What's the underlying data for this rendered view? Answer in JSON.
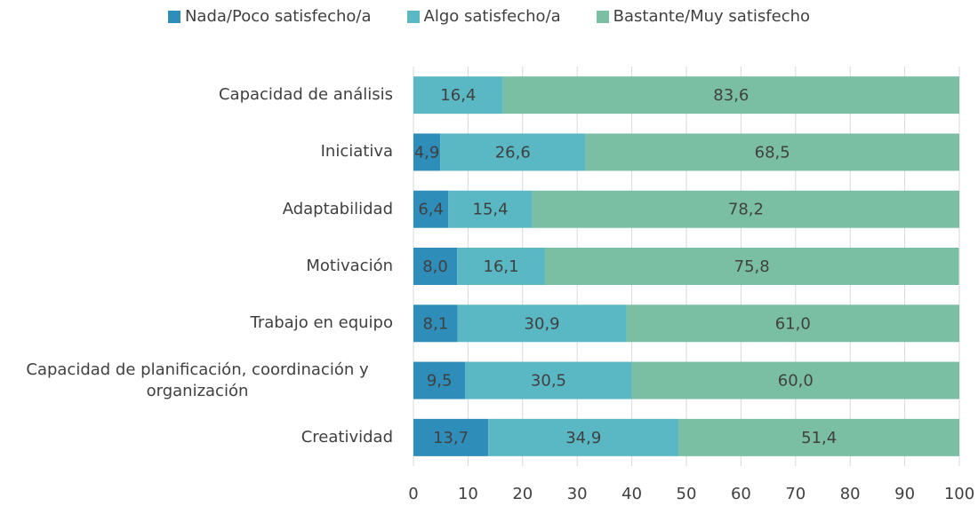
{
  "chart_data": {
    "type": "stacked-bar-horizontal",
    "categories": [
      "Capacidad de análisis",
      "Iniciativa",
      "Adaptabilidad",
      "Motivación",
      "Trabajo en equipo",
      "Capacidad de planificación, coordinación y organización",
      "Creatividad"
    ],
    "series": [
      {
        "name": "Nada/Poco satisfecho/a",
        "color": "#2f8dba",
        "values": [
          null,
          4.9,
          6.4,
          8.0,
          8.1,
          9.5,
          13.7
        ],
        "value_labels": [
          null,
          "4,9",
          "6,4",
          "8,0",
          "8,1",
          "9,5",
          "13,7"
        ]
      },
      {
        "name": "Algo satisfecho/a",
        "color": "#5ab7c4",
        "values": [
          16.4,
          26.6,
          15.4,
          16.1,
          30.9,
          30.5,
          34.9
        ],
        "value_labels": [
          "16,4",
          "26,6",
          "15,4",
          "16,1",
          "30,9",
          "30,5",
          "34,9"
        ]
      },
      {
        "name": "Bastante/Muy satisfecho",
        "color": "#7abfa4",
        "values": [
          83.6,
          68.5,
          78.2,
          75.8,
          61.0,
          60.0,
          51.4
        ],
        "value_labels": [
          "83,6",
          "68,5",
          "78,2",
          "75,8",
          "61,0",
          "60,0",
          "51,4"
        ]
      }
    ],
    "xlim": [
      0,
      100
    ],
    "xticks": [
      0,
      10,
      20,
      30,
      40,
      50,
      60,
      70,
      80,
      90,
      100
    ],
    "grid": true,
    "legend": "top"
  }
}
